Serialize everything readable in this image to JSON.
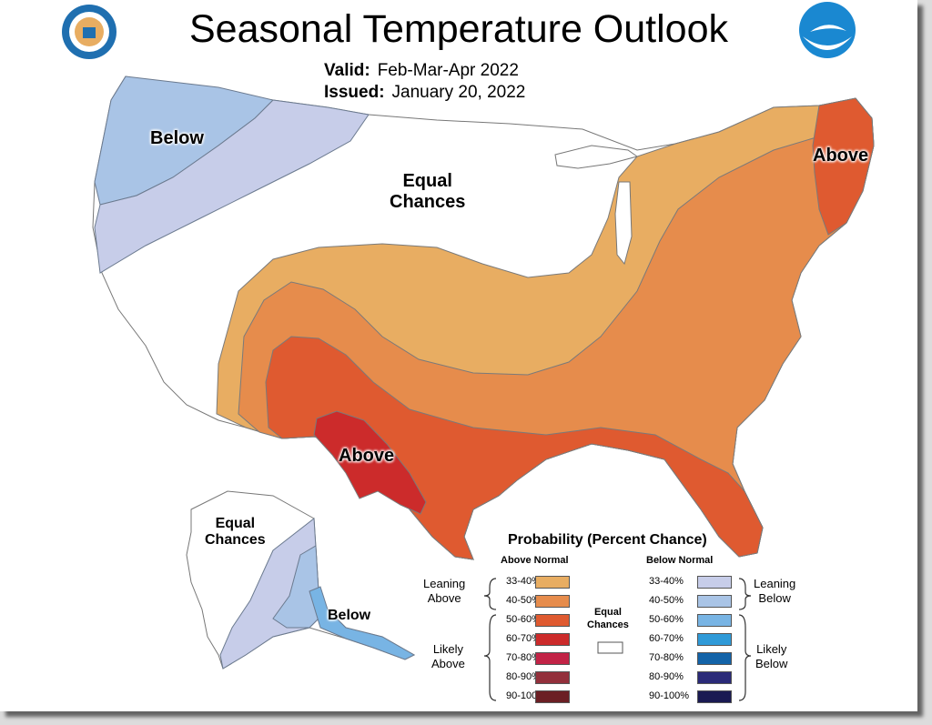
{
  "title": "Seasonal Temperature Outlook",
  "valid_label": "Valid:",
  "valid_value": "Feb-Mar-Apr 2022",
  "issued_label": "Issued:",
  "issued_value": "January 20, 2022",
  "map_labels": {
    "below_nw": "Below",
    "equal_center_1": "Equal",
    "equal_center_2": "Chances",
    "above_ne": "Above",
    "above_sw": "Above",
    "equal_ak_1": "Equal",
    "equal_ak_2": "Chances",
    "below_ak": "Below"
  },
  "legend": {
    "title": "Probability (Percent Chance)",
    "above_header": "Above Normal",
    "below_header": "Below Normal",
    "equal_label_1": "Equal",
    "equal_label_2": "Chances",
    "leaning_above_1": "Leaning",
    "leaning_above_2": "Above",
    "likely_above_1": "Likely",
    "likely_above_2": "Above",
    "leaning_below_1": "Leaning",
    "leaning_below_2": "Below",
    "likely_below_1": "Likely",
    "likely_below_2": "Below",
    "above": [
      {
        "label": "33-40%",
        "color": "#e8ad62"
      },
      {
        "label": "40-50%",
        "color": "#e68c4c"
      },
      {
        "label": "50-60%",
        "color": "#df5a30"
      },
      {
        "label": "60-70%",
        "color": "#cc2b2b"
      },
      {
        "label": "70-80%",
        "color": "#c22346"
      },
      {
        "label": "80-90%",
        "color": "#93303b"
      },
      {
        "label": "90-100%",
        "color": "#6b1f24"
      }
    ],
    "below": [
      {
        "label": "33-40%",
        "color": "#c7cde9"
      },
      {
        "label": "40-50%",
        "color": "#a9c4e6"
      },
      {
        "label": "50-60%",
        "color": "#78b4e4"
      },
      {
        "label": "60-70%",
        "color": "#2f9ad8"
      },
      {
        "label": "70-80%",
        "color": "#1363a8"
      },
      {
        "label": "80-90%",
        "color": "#2a2a78"
      },
      {
        "label": "90-100%",
        "color": "#1a1a52"
      }
    ]
  }
}
